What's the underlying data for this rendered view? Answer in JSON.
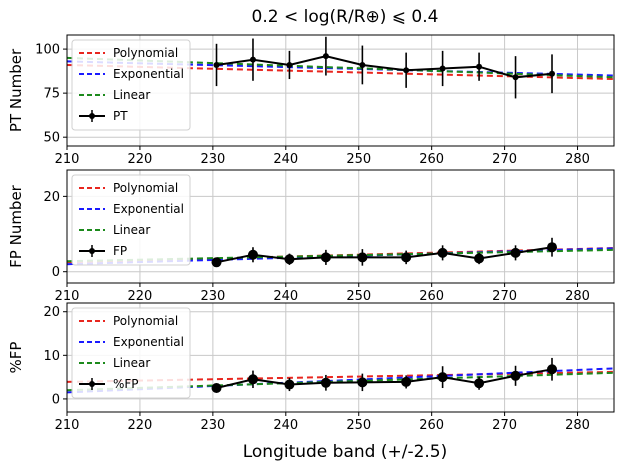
{
  "figure": {
    "title": "0.2 < log(R/R⊕) ⩽ 0.4",
    "xlabel": "Longitude band (+/-2.5)"
  },
  "colors": {
    "Polynomial": "#e8261f",
    "Exponential": "#1a1aff",
    "Linear": "#1c8a1c",
    "data": "#000000"
  },
  "chart_data": [
    {
      "type": "line",
      "ylabel": "PT Number",
      "xlim": [
        210,
        285
      ],
      "ylim": [
        45,
        108
      ],
      "xticks": [
        210,
        220,
        230,
        240,
        250,
        260,
        270,
        280
      ],
      "yticks": [
        50,
        75,
        100
      ],
      "grid": true,
      "legend_position": "upper-left",
      "series": [
        {
          "name": "Polynomial",
          "style": "dashed",
          "x": [
            210,
            285
          ],
          "y": [
            91,
            83
          ]
        },
        {
          "name": "Exponential",
          "style": "dashed",
          "x": [
            210,
            285
          ],
          "y": [
            93,
            85
          ]
        },
        {
          "name": "Linear",
          "style": "dashed",
          "x": [
            210,
            285
          ],
          "y": [
            95,
            84
          ]
        },
        {
          "name": "PT",
          "style": "errorbar",
          "x": [
            230.5,
            235.5,
            240.5,
            245.5,
            250.5,
            256.5,
            261.5,
            266.5,
            271.5,
            276.5
          ],
          "y": [
            91,
            94,
            91,
            96,
            91,
            88,
            89,
            90,
            84,
            86
          ],
          "err": [
            12,
            12,
            8,
            11,
            11,
            10,
            10,
            8,
            12,
            11
          ]
        }
      ]
    },
    {
      "type": "line",
      "ylabel": "FP Number",
      "xlim": [
        210,
        285
      ],
      "ylim": [
        -3,
        27
      ],
      "xticks": [
        210,
        220,
        230,
        240,
        250,
        260,
        270,
        280
      ],
      "yticks": [
        0,
        20
      ],
      "grid": true,
      "legend_position": "upper-left",
      "series": [
        {
          "name": "Polynomial",
          "style": "dashed",
          "x": [
            210,
            285
          ],
          "y": [
            2.5,
            6.3
          ]
        },
        {
          "name": "Exponential",
          "style": "dashed",
          "x": [
            210,
            285
          ],
          "y": [
            2.0,
            6.2
          ]
        },
        {
          "name": "Linear",
          "style": "dashed",
          "x": [
            210,
            285
          ],
          "y": [
            2.8,
            5.8
          ]
        },
        {
          "name": "FP",
          "style": "errorbar",
          "x": [
            230.5,
            235.5,
            240.5,
            245.5,
            250.5,
            256.5,
            261.5,
            266.5,
            271.5,
            276.5
          ],
          "y": [
            2.5,
            4.5,
            3.3,
            3.8,
            3.8,
            3.8,
            5.0,
            3.5,
            5.0,
            6.5
          ],
          "err": [
            1.2,
            2.0,
            1.5,
            2.0,
            2.2,
            1.8,
            2.0,
            1.5,
            2.0,
            2.5
          ]
        }
      ]
    },
    {
      "type": "line",
      "ylabel": "%FP",
      "xlim": [
        210,
        285
      ],
      "ylim": [
        -3,
        22
      ],
      "xticks": [
        210,
        220,
        230,
        240,
        250,
        260,
        270,
        280
      ],
      "yticks": [
        0,
        10,
        20
      ],
      "grid": true,
      "legend_position": "upper-left",
      "series": [
        {
          "name": "Polynomial",
          "style": "dashed",
          "x": [
            210,
            285
          ],
          "y": [
            3.9,
            6.2
          ]
        },
        {
          "name": "Exponential",
          "style": "dashed",
          "x": [
            210,
            285
          ],
          "y": [
            1.5,
            7.0
          ]
        },
        {
          "name": "Linear",
          "style": "dashed",
          "x": [
            210,
            285
          ],
          "y": [
            2.0,
            6.0
          ]
        },
        {
          "name": "%FP",
          "style": "errorbar",
          "x": [
            230.5,
            235.5,
            240.5,
            245.5,
            250.5,
            256.5,
            261.5,
            266.5,
            271.5,
            276.5
          ],
          "y": [
            2.5,
            4.5,
            3.3,
            3.7,
            3.8,
            3.9,
            5.0,
            3.6,
            5.3,
            6.8
          ],
          "err": [
            1.0,
            2.0,
            1.5,
            1.8,
            2.0,
            1.5,
            2.5,
            1.5,
            2.3,
            2.6
          ]
        }
      ]
    }
  ]
}
